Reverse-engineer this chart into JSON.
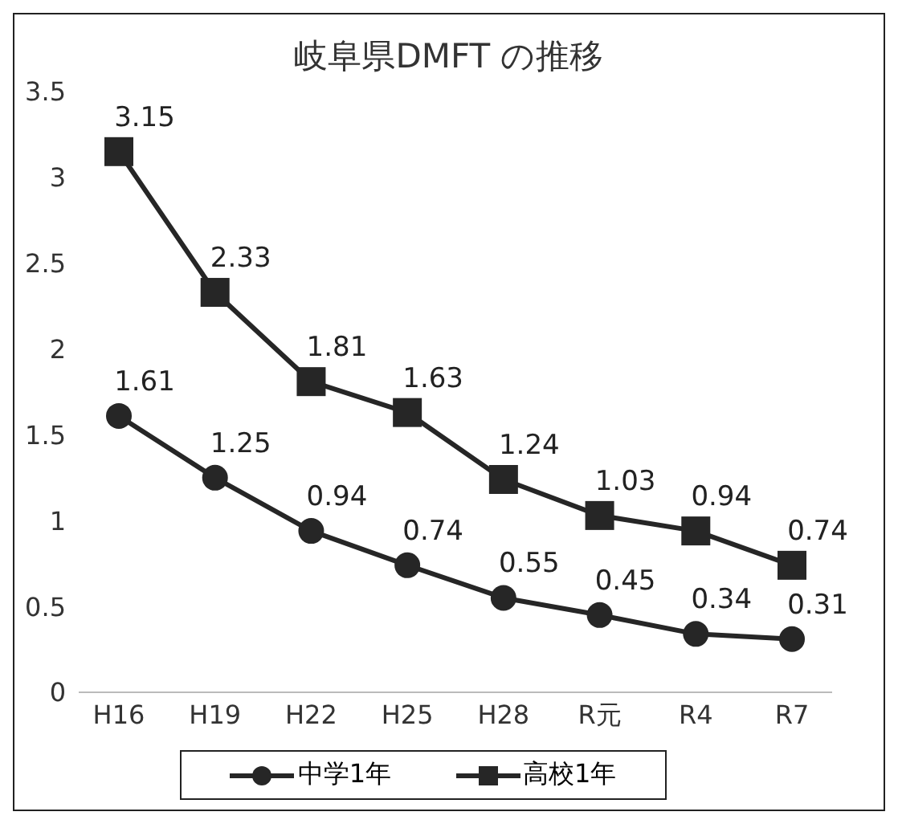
{
  "chart_data": {
    "type": "line",
    "title": "岐阜県DMFT の推移",
    "categories": [
      "H16",
      "H19",
      "H22",
      "H25",
      "H28",
      "R元",
      "R4",
      "R7"
    ],
    "series": [
      {
        "name": "中学1年",
        "color": "#262626",
        "marker": "circle",
        "values": [
          1.61,
          1.25,
          0.94,
          0.74,
          0.55,
          0.45,
          0.34,
          0.31
        ]
      },
      {
        "name": "高校1年",
        "color": "#262626",
        "marker": "square",
        "values": [
          3.15,
          2.33,
          1.81,
          1.63,
          1.24,
          1.03,
          0.94,
          0.74
        ]
      }
    ],
    "ylim": [
      0,
      3.5
    ],
    "yticks": [
      0,
      0.5,
      1,
      1.5,
      2,
      2.5,
      3,
      3.5
    ],
    "grid": false,
    "legend": "bottom",
    "data_labels": true
  }
}
